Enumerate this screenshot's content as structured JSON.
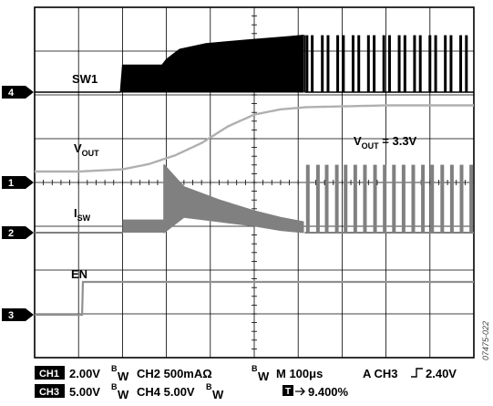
{
  "chart_data": {
    "type": "line",
    "title": "",
    "grid": true,
    "grid_divisions": [
      10,
      8
    ],
    "time_per_div_us": 100,
    "xlim_us": [
      0,
      1000
    ],
    "channel_markers": [
      {
        "id": "ch4",
        "label": "4"
      },
      {
        "id": "ch1",
        "label": "1"
      },
      {
        "id": "ch2",
        "label": "2"
      },
      {
        "id": "ch3",
        "label": "3"
      }
    ],
    "series": [
      {
        "name": "SW1",
        "channel": "ch4",
        "color": "#000000",
        "kind": "switching",
        "note_values_in_divisions_above_ground": true,
        "envelope_low": 0,
        "envelope_high": [
          [
            0,
            0
          ],
          [
            195,
            0
          ],
          [
            200,
            0.62
          ],
          [
            290,
            0.62
          ],
          [
            300,
            0.75
          ],
          [
            330,
            0.98
          ],
          [
            390,
            1.11
          ],
          [
            480,
            1.19
          ],
          [
            580,
            1.27
          ],
          [
            612,
            1.3
          ],
          [
            615,
            0
          ]
        ],
        "burst_start_us": 615,
        "burst_peak_div": 1.3,
        "pulse_times_us": [
          620,
          632,
          655,
          668,
          690,
          703,
          725,
          738,
          760,
          773,
          795,
          808,
          830,
          843,
          865,
          878,
          900,
          913,
          935,
          948,
          970,
          983
        ]
      },
      {
        "name": "VOUT",
        "channel": "ch1",
        "color": "#b0b0b0",
        "kind": "analog",
        "points": [
          [
            0,
            0.25
          ],
          [
            100,
            0.25
          ],
          [
            200,
            0.3
          ],
          [
            260,
            0.42
          ],
          [
            320,
            0.62
          ],
          [
            380,
            0.9
          ],
          [
            440,
            1.28
          ],
          [
            500,
            1.55
          ],
          [
            560,
            1.67
          ],
          [
            620,
            1.72
          ],
          [
            800,
            1.76
          ],
          [
            1000,
            1.76
          ]
        ],
        "annotation": "V_OUT = 3.3V"
      },
      {
        "name": "ISW",
        "channel": "ch2",
        "color": "#808080",
        "kind": "current",
        "note_values_in_divisions_above_ground": true,
        "noise_start_us": 200,
        "step_us": [
          200,
          0.3
        ],
        "spike_us": [
          295,
          1.55
        ],
        "decay_band": [
          [
            295,
            1.55,
            0.0
          ],
          [
            340,
            1.05,
            0.35
          ],
          [
            420,
            0.75,
            0.25
          ],
          [
            500,
            0.5,
            0.15
          ],
          [
            560,
            0.35,
            0.05
          ],
          [
            612,
            0.25,
            0.0
          ]
        ],
        "burst_start_us": 615,
        "burst_peak_div": 1.55,
        "pulse_times_us": [
          622,
          645,
          665,
          688,
          708,
          730,
          752,
          775,
          797,
          818,
          840,
          862,
          884,
          905,
          928,
          950,
          972,
          994
        ]
      },
      {
        "name": "EN",
        "channel": "ch3",
        "color": "#909090",
        "kind": "analog",
        "points": [
          [
            0,
            0
          ],
          [
            108,
            0
          ],
          [
            110,
            0.75
          ],
          [
            1000,
            0.75
          ]
        ]
      }
    ],
    "labels": {
      "sw1": "SW1",
      "vout_main": "V",
      "vout_sub": "OUT",
      "isw_main": "I",
      "isw_sub": "SW",
      "en": "EN",
      "annotation_main": "V",
      "annotation_sub": "OUT",
      "annotation_rest": " = 3.3V"
    },
    "settings": {
      "line1": {
        "ch1_box": "CH1",
        "ch1_value": "2.00V",
        "bw1_b": "B",
        "bw1_w": "W",
        "ch2": "CH2  500mAΩ",
        "bw2_b": "B",
        "bw2_w": "W",
        "timebase": "M 100μs",
        "trigger": "A  CH3",
        "trigger_level": "2.40V"
      },
      "line2": {
        "ch3_box": "CH3",
        "ch3_value": "5.00V",
        "bw3_b": "B",
        "bw3_w": "W",
        "ch4": "CH4 5.00V",
        "bw4_b": "B",
        "bw4_w": "W",
        "trigger_box": "T",
        "trigger_position": "9.400%"
      }
    },
    "figure_id": "07475-022"
  }
}
